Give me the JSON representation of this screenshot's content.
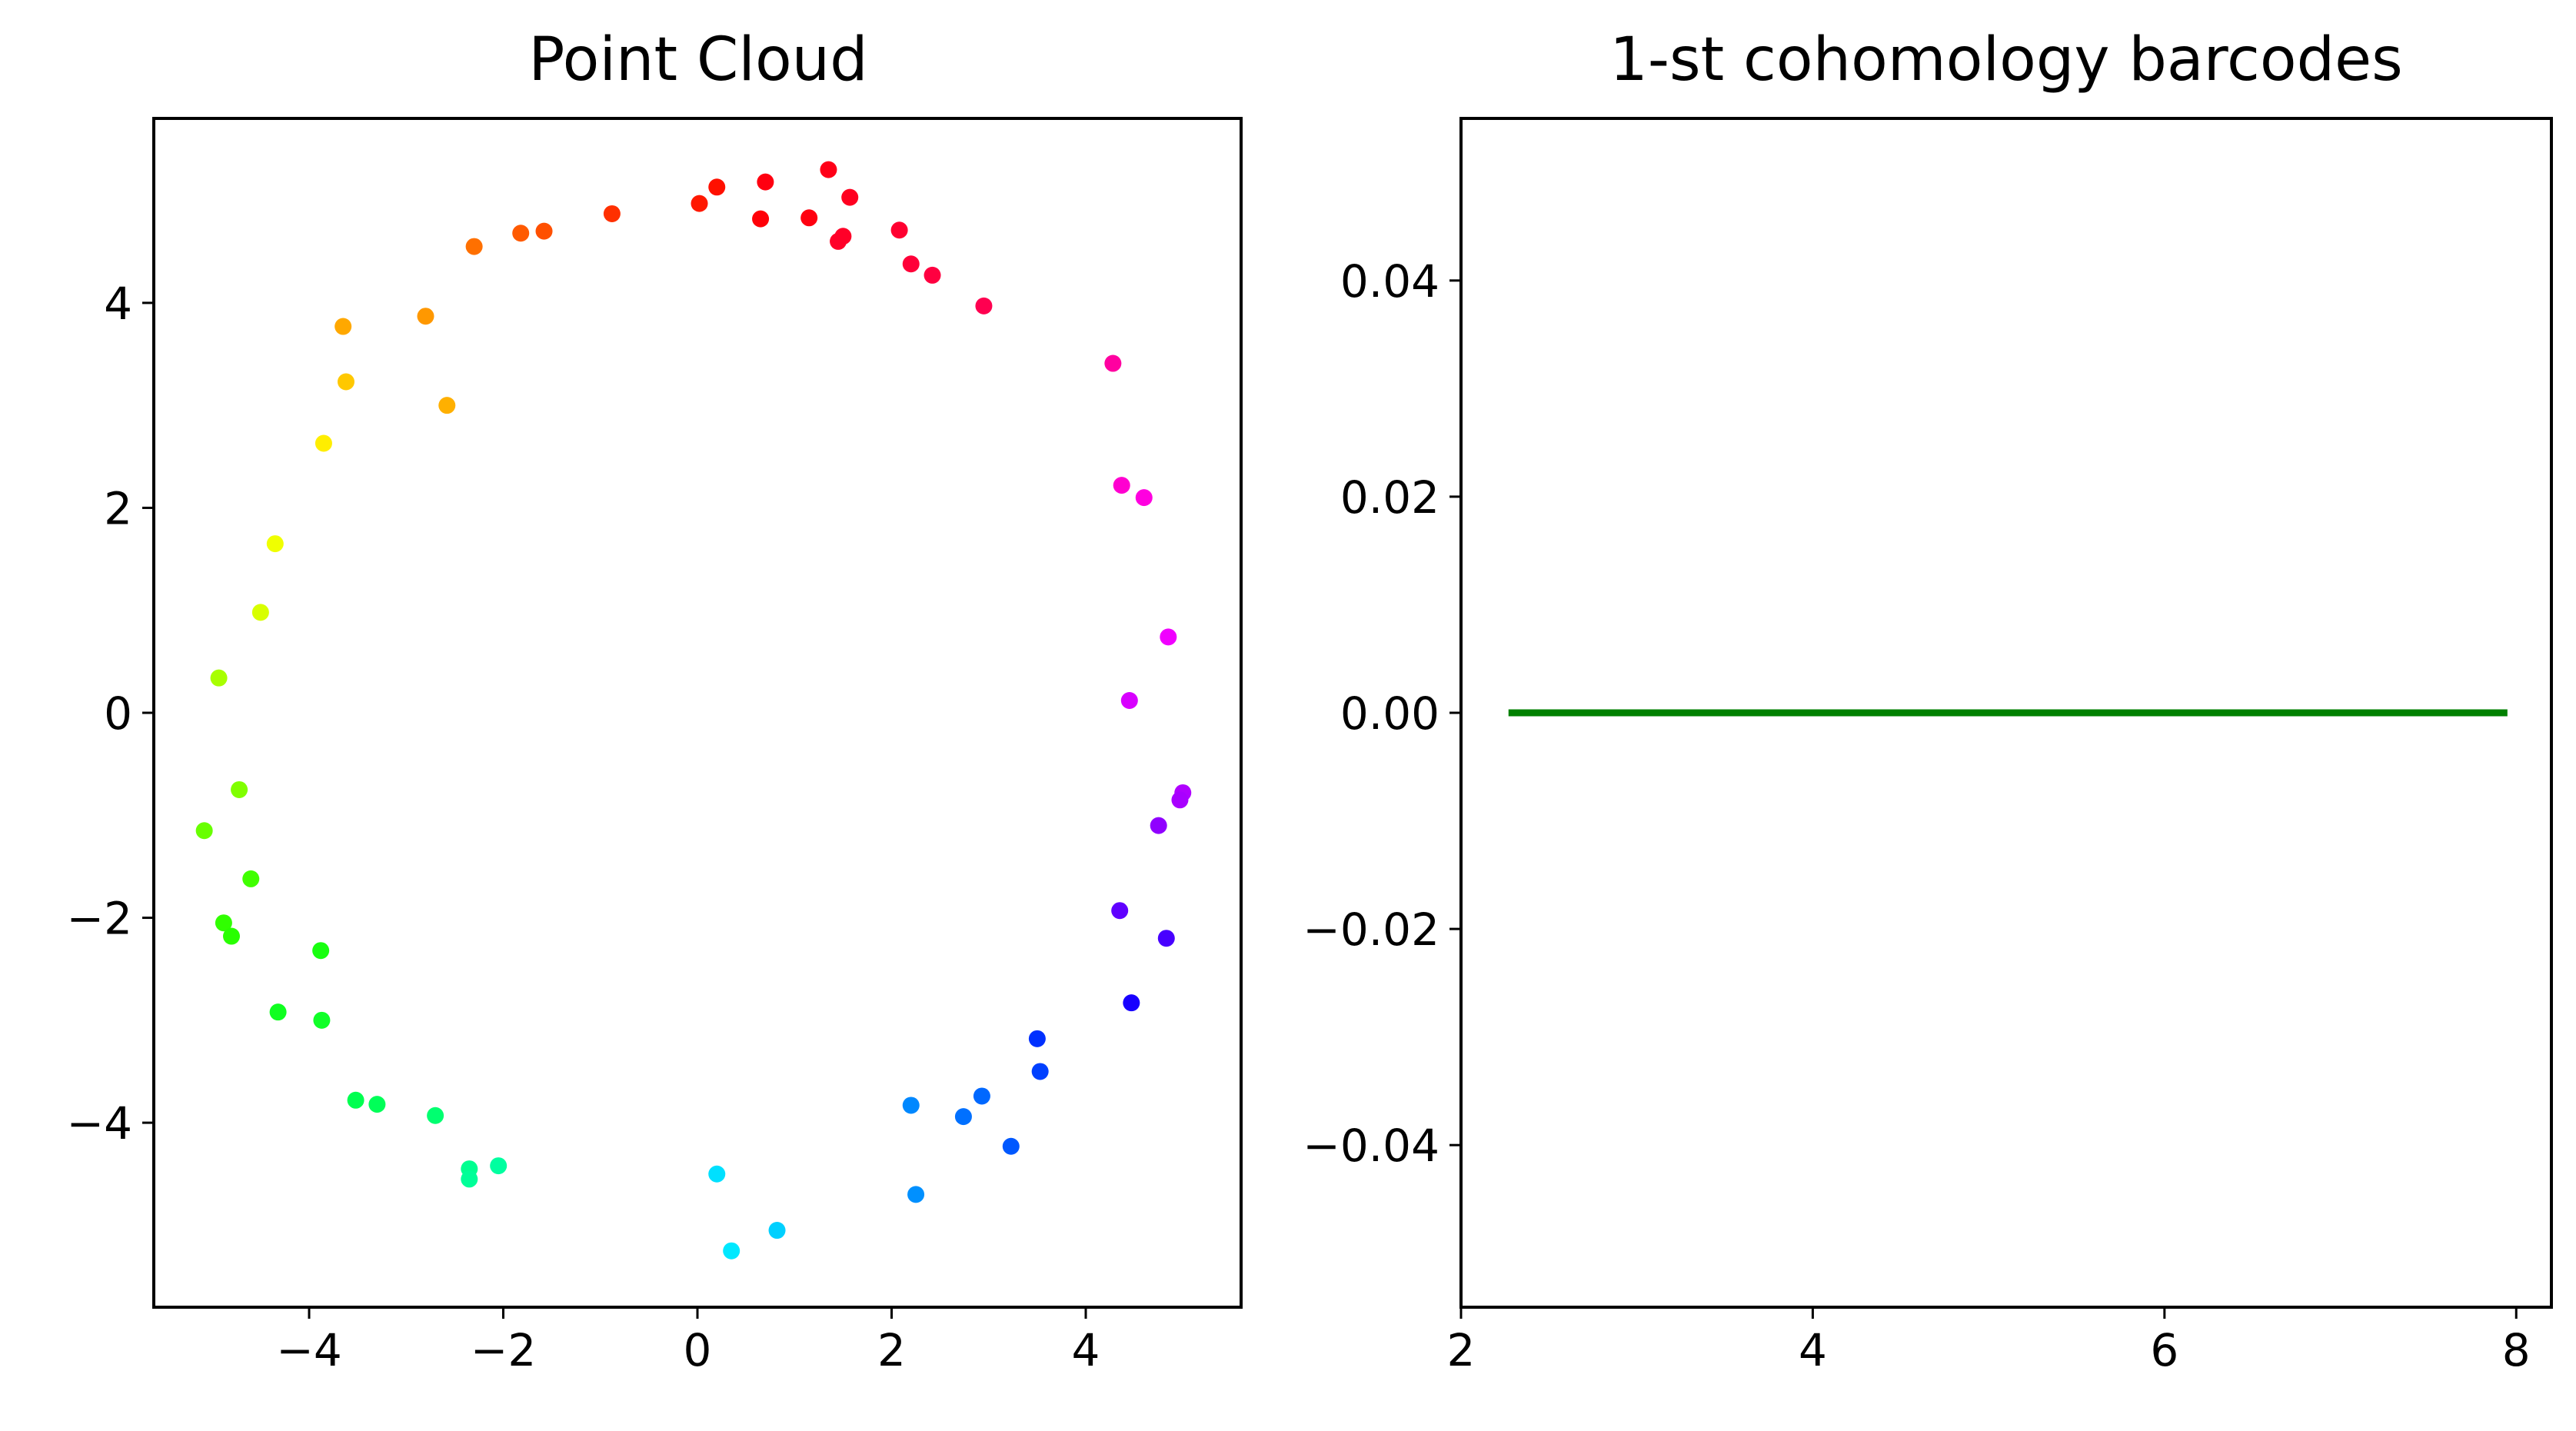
{
  "chart_data": [
    {
      "type": "scatter",
      "title": "Point Cloud",
      "xlabel": "",
      "ylabel": "",
      "xlim": [
        -5.6,
        5.6
      ],
      "ylim": [
        -5.8,
        5.8
      ],
      "xticks": [
        -4,
        -2,
        0,
        2,
        4
      ],
      "xtick_labels": [
        "−4",
        "−2",
        "0",
        "2",
        "4"
      ],
      "yticks": [
        -4,
        -2,
        0,
        2,
        4
      ],
      "ytick_labels": [
        "−4",
        "−2",
        "0",
        "2",
        "4"
      ],
      "grid": false,
      "colormap": "hsv",
      "points": [
        {
          "x": 1.35,
          "y": 5.3,
          "color": "#ff0018"
        },
        {
          "x": 0.7,
          "y": 5.18,
          "color": "#ff0010"
        },
        {
          "x": 0.2,
          "y": 5.13,
          "color": "#ff1000"
        },
        {
          "x": 1.57,
          "y": 5.03,
          "color": "#ff0020"
        },
        {
          "x": 0.02,
          "y": 4.97,
          "color": "#ff1800"
        },
        {
          "x": -0.88,
          "y": 4.87,
          "color": "#ff3000"
        },
        {
          "x": 0.65,
          "y": 4.82,
          "color": "#ff0008"
        },
        {
          "x": 1.15,
          "y": 4.83,
          "color": "#ff0010"
        },
        {
          "x": -1.58,
          "y": 4.7,
          "color": "#ff5000"
        },
        {
          "x": -1.82,
          "y": 4.68,
          "color": "#ff5a00"
        },
        {
          "x": 2.08,
          "y": 4.71,
          "color": "#ff0030"
        },
        {
          "x": 1.5,
          "y": 4.65,
          "color": "#ff0028"
        },
        {
          "x": 1.45,
          "y": 4.6,
          "color": "#ff0028"
        },
        {
          "x": -2.3,
          "y": 4.55,
          "color": "#ff7000"
        },
        {
          "x": 2.2,
          "y": 4.38,
          "color": "#ff0038"
        },
        {
          "x": 2.42,
          "y": 4.27,
          "color": "#ff0040"
        },
        {
          "x": 2.95,
          "y": 3.97,
          "color": "#ff0050"
        },
        {
          "x": -2.8,
          "y": 3.87,
          "color": "#ff9800"
        },
        {
          "x": -3.65,
          "y": 3.77,
          "color": "#ffa800"
        },
        {
          "x": 4.28,
          "y": 3.41,
          "color": "#ff00a0"
        },
        {
          "x": -3.62,
          "y": 3.23,
          "color": "#ffc800"
        },
        {
          "x": -2.58,
          "y": 3.0,
          "color": "#ffb000"
        },
        {
          "x": -3.85,
          "y": 2.63,
          "color": "#ffee00"
        },
        {
          "x": 4.37,
          "y": 2.22,
          "color": "#ff00d0"
        },
        {
          "x": 4.6,
          "y": 2.1,
          "color": "#ff00e0"
        },
        {
          "x": -4.35,
          "y": 1.65,
          "color": "#f0ff00"
        },
        {
          "x": -4.5,
          "y": 0.98,
          "color": "#d8ff00"
        },
        {
          "x": 4.85,
          "y": 0.74,
          "color": "#f000ff"
        },
        {
          "x": -4.93,
          "y": 0.34,
          "color": "#a8ff00"
        },
        {
          "x": 4.45,
          "y": 0.12,
          "color": "#d800ff"
        },
        {
          "x": -4.72,
          "y": -0.75,
          "color": "#80ff00"
        },
        {
          "x": 5.0,
          "y": -0.78,
          "color": "#b000ff"
        },
        {
          "x": 4.97,
          "y": -0.85,
          "color": "#a800ff"
        },
        {
          "x": -5.08,
          "y": -1.15,
          "color": "#68ff00"
        },
        {
          "x": 4.75,
          "y": -1.1,
          "color": "#9000ff"
        },
        {
          "x": -4.6,
          "y": -1.62,
          "color": "#40ff00"
        },
        {
          "x": 4.35,
          "y": -1.93,
          "color": "#6000ff"
        },
        {
          "x": -4.88,
          "y": -2.05,
          "color": "#30ff00"
        },
        {
          "x": -4.8,
          "y": -2.18,
          "color": "#28ff00"
        },
        {
          "x": 4.83,
          "y": -2.2,
          "color": "#4800ff"
        },
        {
          "x": -3.88,
          "y": -2.32,
          "color": "#18ff10"
        },
        {
          "x": 4.47,
          "y": -2.83,
          "color": "#1800ff"
        },
        {
          "x": -4.32,
          "y": -2.92,
          "color": "#10ff20"
        },
        {
          "x": -3.87,
          "y": -3.0,
          "color": "#10ff28"
        },
        {
          "x": 3.5,
          "y": -3.18,
          "color": "#0030ff"
        },
        {
          "x": 3.53,
          "y": -3.5,
          "color": "#0040ff"
        },
        {
          "x": 2.93,
          "y": -3.74,
          "color": "#0068ff"
        },
        {
          "x": -3.52,
          "y": -3.78,
          "color": "#00ff50"
        },
        {
          "x": -3.3,
          "y": -3.82,
          "color": "#00ff58"
        },
        {
          "x": 2.2,
          "y": -3.83,
          "color": "#0088ff"
        },
        {
          "x": -2.7,
          "y": -3.93,
          "color": "#00ff70"
        },
        {
          "x": 2.74,
          "y": -3.94,
          "color": "#0070ff"
        },
        {
          "x": 3.23,
          "y": -4.23,
          "color": "#0058ff"
        },
        {
          "x": -2.35,
          "y": -4.45,
          "color": "#00ff90"
        },
        {
          "x": -2.05,
          "y": -4.42,
          "color": "#00ffa0"
        },
        {
          "x": -2.35,
          "y": -4.55,
          "color": "#00ff98"
        },
        {
          "x": 0.2,
          "y": -4.5,
          "color": "#00e0ff"
        },
        {
          "x": 2.25,
          "y": -4.7,
          "color": "#0090ff"
        },
        {
          "x": 0.82,
          "y": -5.05,
          "color": "#00d0ff"
        },
        {
          "x": 0.35,
          "y": -5.25,
          "color": "#00e8ff"
        }
      ]
    },
    {
      "type": "line",
      "title": "1-st cohomology barcodes",
      "xlabel": "",
      "ylabel": "",
      "xlim": [
        2.0,
        8.2
      ],
      "ylim": [
        -0.055,
        0.055
      ],
      "xticks": [
        2,
        4,
        6,
        8
      ],
      "xtick_labels": [
        "2",
        "4",
        "6",
        "8"
      ],
      "yticks": [
        -0.04,
        -0.02,
        0.0,
        0.02,
        0.04
      ],
      "ytick_labels": [
        "−0.04",
        "−0.02",
        "0.00",
        "0.02",
        "0.04"
      ],
      "grid": false,
      "series": [
        {
          "x": [
            2.27,
            7.95
          ],
          "y": [
            0.0,
            0.0
          ],
          "color": "#008000"
        }
      ]
    }
  ]
}
